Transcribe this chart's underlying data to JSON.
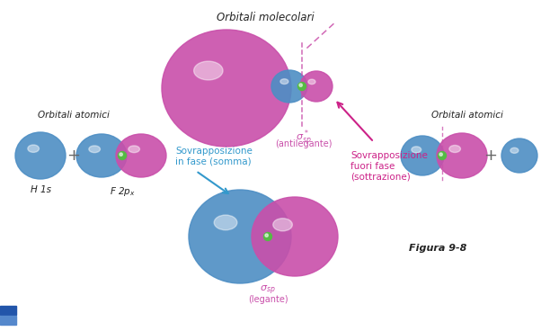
{
  "title": "Orbitali molecolari",
  "label_orbitali_atomici_left": "Orbitali atomici",
  "label_orbitali_atomici_right": "Orbitali atomici",
  "label_H1s": "H 1s",
  "label_F2px": "F 2p",
  "label_antibonding_math": "$\\sigma^*_{sp}$",
  "label_antibonding_paren": "(antilegante)",
  "label_bonding_math": "$\\sigma_{sp}$",
  "label_bonding_paren": "(legante)",
  "label_in_phase": "Sovrapposizione\nin fase (somma)",
  "label_out_phase": "Sovrapposizione\nfuori fase\n(sottrazione)",
  "label_figura": "Figura 9-8",
  "color_blue": "#4d8ec4",
  "color_magenta": "#c94faa",
  "color_green": "#55bb44",
  "color_arrow_blue": "#3399cc",
  "color_arrow_magenta": "#cc2288",
  "bg_color": "#ffffff",
  "text_color": "#444444",
  "text_dark": "#222222"
}
